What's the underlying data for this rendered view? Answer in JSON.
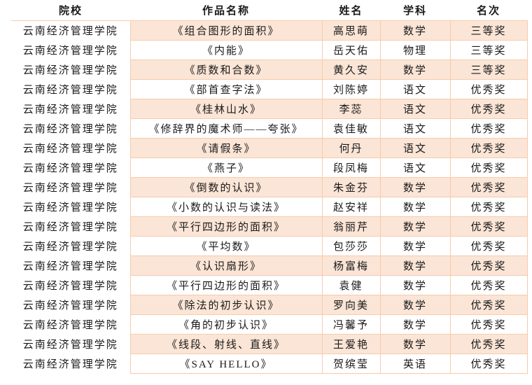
{
  "table": {
    "columns": [
      {
        "key": "institution",
        "label": "院校"
      },
      {
        "key": "work_title",
        "label": "作品名称"
      },
      {
        "key": "student_name",
        "label": "姓名"
      },
      {
        "key": "subject",
        "label": "学科"
      },
      {
        "key": "rank",
        "label": "名次"
      }
    ],
    "rows": [
      {
        "institution": "云南经济管理学院",
        "work_title": "《组合图形的面积》",
        "student_name": "高思萌",
        "subject": "数学",
        "rank": "三等奖"
      },
      {
        "institution": "云南经济管理学院",
        "work_title": "《内能》",
        "student_name": "岳天佑",
        "subject": "物理",
        "rank": "三等奖"
      },
      {
        "institution": "云南经济管理学院",
        "work_title": "《质数和合数》",
        "student_name": "黄久安",
        "subject": "数学",
        "rank": "三等奖"
      },
      {
        "institution": "云南经济管理学院",
        "work_title": "《部首查字法》",
        "student_name": "刘陈婷",
        "subject": "语文",
        "rank": "优秀奖"
      },
      {
        "institution": "云南经济管理学院",
        "work_title": "《桂林山水》",
        "student_name": "李蕊",
        "subject": "语文",
        "rank": "优秀奖"
      },
      {
        "institution": "云南经济管理学院",
        "work_title": "《修辞界的魔术师——夸张》",
        "student_name": "袁佳敏",
        "subject": "语文",
        "rank": "优秀奖"
      },
      {
        "institution": "云南经济管理学院",
        "work_title": "《请假条》",
        "student_name": "何丹",
        "subject": "语文",
        "rank": "优秀奖"
      },
      {
        "institution": "云南经济管理学院",
        "work_title": "《燕子》",
        "student_name": "段凤梅",
        "subject": "语文",
        "rank": "优秀奖"
      },
      {
        "institution": "云南经济管理学院",
        "work_title": "《倒数的认识》",
        "student_name": "朱金芬",
        "subject": "数学",
        "rank": "优秀奖"
      },
      {
        "institution": "云南经济管理学院",
        "work_title": "《小数的认识与读法》",
        "student_name": "赵安祥",
        "subject": "数学",
        "rank": "优秀奖"
      },
      {
        "institution": "云南经济管理学院",
        "work_title": "《平行四边形的面积》",
        "student_name": "翁丽芹",
        "subject": "数学",
        "rank": "优秀奖"
      },
      {
        "institution": "云南经济管理学院",
        "work_title": "《平均数》",
        "student_name": "包莎莎",
        "subject": "数学",
        "rank": "优秀奖"
      },
      {
        "institution": "云南经济管理学院",
        "work_title": "《认识扇形》",
        "student_name": "杨富梅",
        "subject": "数学",
        "rank": "优秀奖"
      },
      {
        "institution": "云南经济管理学院",
        "work_title": "《平行四边形的面积》",
        "student_name": "袁健",
        "subject": "数学",
        "rank": "优秀奖"
      },
      {
        "institution": "云南经济管理学院",
        "work_title": "《除法的初步认识》",
        "student_name": "罗向美",
        "subject": "数学",
        "rank": "优秀奖"
      },
      {
        "institution": "云南经济管理学院",
        "work_title": "《角的初步认识》",
        "student_name": "冯馨予",
        "subject": "数学",
        "rank": "优秀奖"
      },
      {
        "institution": "云南经济管理学院",
        "work_title": "《线段、射线、直线》",
        "student_name": "王爱艳",
        "subject": "数学",
        "rank": "优秀奖"
      },
      {
        "institution": "云南经济管理学院",
        "work_title": "《SAY HELLO》",
        "student_name": "贺缤莹",
        "subject": "英语",
        "rank": "优秀奖"
      }
    ]
  },
  "colors": {
    "row_shade": "#fbe5d6",
    "border": "#f7cbac",
    "text": "#1a1a1a",
    "background": "#ffffff"
  }
}
